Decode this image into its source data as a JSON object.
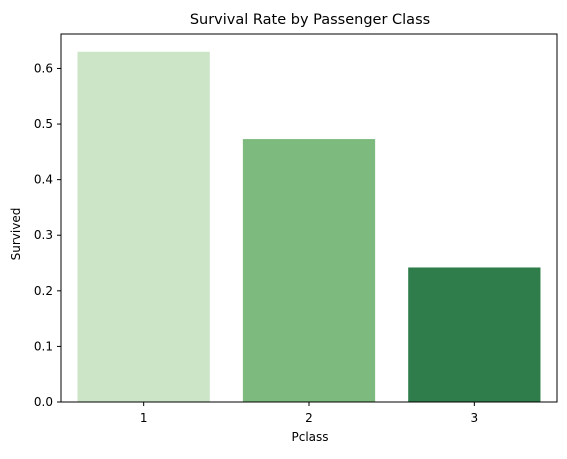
{
  "chart_data": {
    "type": "bar",
    "title": "Survival Rate by Passenger Class",
    "xlabel": "Pclass",
    "ylabel": "Survived",
    "categories": [
      "1",
      "2",
      "3"
    ],
    "values": [
      0.63,
      0.473,
      0.242
    ],
    "colors": [
      "#cce5c6",
      "#7dba7e",
      "#2e7d4a"
    ],
    "ylim": [
      0,
      0.662
    ],
    "yticks": [
      0.0,
      0.1,
      0.2,
      0.3,
      0.4,
      0.5,
      0.6
    ],
    "ytick_labels": [
      "0.0",
      "0.1",
      "0.2",
      "0.3",
      "0.4",
      "0.5",
      "0.6"
    ],
    "grid": false,
    "legend": "none"
  }
}
